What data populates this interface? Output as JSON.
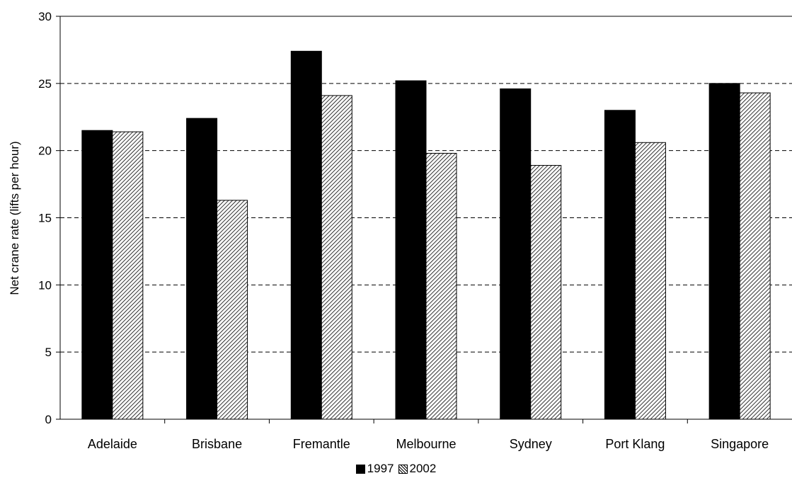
{
  "chart_data": {
    "type": "bar",
    "title": "",
    "xlabel": "",
    "ylabel": "Net crane rate (lifts per hour)",
    "ylim": [
      0,
      30
    ],
    "yticks": [
      "0",
      "5",
      "10",
      "15",
      "20",
      "25",
      "30"
    ],
    "grid": true,
    "legend_position": "bottom",
    "categories": [
      "Adelaide",
      "Brisbane",
      "Fremantle",
      "Melbourne",
      "Sydney",
      "Port Klang",
      "Singapore"
    ],
    "series": [
      {
        "name": "1997",
        "fill": "solid",
        "color": "#000000",
        "values": [
          21.5,
          22.4,
          27.4,
          25.2,
          24.6,
          23.0,
          25.0
        ]
      },
      {
        "name": "2002",
        "fill": "hatched",
        "color": "#000000",
        "values": [
          21.4,
          16.3,
          24.1,
          19.8,
          18.9,
          20.6,
          24.3
        ]
      }
    ]
  }
}
